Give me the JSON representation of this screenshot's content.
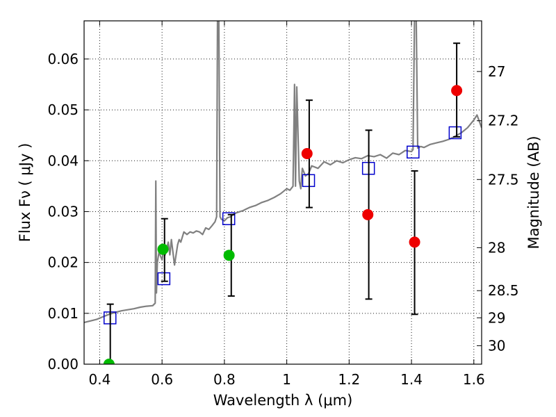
{
  "chart_data": {
    "type": "scatter",
    "title": "",
    "xlabel": "Wavelength  λ (μm)",
    "ylabel": "Flux  Fν  ( μJy )",
    "y2label": "Magnitude (AB)",
    "xlim": [
      0.35,
      1.625
    ],
    "ylim": [
      0.0,
      0.0675
    ],
    "grid": true,
    "x_ticks": [
      0.4,
      0.6,
      0.8,
      1.0,
      1.2,
      1.4,
      1.6
    ],
    "x_tick_labels": [
      "0.4",
      "0.6",
      "0.8",
      "1",
      "1.2",
      "1.4",
      "1.6"
    ],
    "y_ticks": [
      0.0,
      0.01,
      0.02,
      0.03,
      0.04,
      0.05,
      0.06
    ],
    "y_tick_labels": [
      "0.00",
      "0.01",
      "0.02",
      "0.03",
      "0.04",
      "0.05",
      "0.06"
    ],
    "mag_ticks": [
      27,
      27.2,
      27.5,
      28,
      28.5,
      29,
      30
    ],
    "mag_tick_labels": [
      "27",
      "27.2",
      "27.5",
      "28",
      "28.5",
      "29",
      "30"
    ],
    "colors": {
      "spectrum": "#808080",
      "green_points": "#00bb00",
      "red_points": "#ee0000",
      "model_boxes": "#0000cc",
      "errorbars": "#000000"
    },
    "spectrum": {
      "x": [
        0.35,
        0.37,
        0.39,
        0.41,
        0.43,
        0.45,
        0.47,
        0.49,
        0.51,
        0.53,
        0.55,
        0.57,
        0.578,
        0.58,
        0.582,
        0.585,
        0.59,
        0.6,
        0.605,
        0.61,
        0.62,
        0.625,
        0.63,
        0.64,
        0.65,
        0.655,
        0.66,
        0.67,
        0.68,
        0.69,
        0.7,
        0.71,
        0.72,
        0.73,
        0.74,
        0.75,
        0.76,
        0.77,
        0.775,
        0.778,
        0.782,
        0.786,
        0.79,
        0.8,
        0.81,
        0.82,
        0.83,
        0.84,
        0.85,
        0.86,
        0.87,
        0.88,
        0.89,
        0.9,
        0.92,
        0.94,
        0.96,
        0.98,
        0.99,
        1.0,
        1.01,
        1.02,
        1.025,
        1.028,
        1.032,
        1.04,
        1.045,
        1.05,
        1.06,
        1.07,
        1.08,
        1.1,
        1.12,
        1.14,
        1.16,
        1.18,
        1.2,
        1.22,
        1.24,
        1.26,
        1.28,
        1.3,
        1.32,
        1.34,
        1.36,
        1.38,
        1.4,
        1.405,
        1.41,
        1.415,
        1.42,
        1.43,
        1.44,
        1.46,
        1.48,
        1.5,
        1.52,
        1.54,
        1.56,
        1.58,
        1.6,
        1.61,
        1.625
      ],
      "y": [
        0.0082,
        0.0085,
        0.0088,
        0.0093,
        0.0098,
        0.0102,
        0.0105,
        0.0107,
        0.0109,
        0.0112,
        0.0114,
        0.0115,
        0.012,
        0.036,
        0.014,
        0.02,
        0.022,
        0.0205,
        0.0225,
        0.0215,
        0.024,
        0.0215,
        0.0245,
        0.0195,
        0.0235,
        0.0245,
        0.024,
        0.026,
        0.0255,
        0.026,
        0.0258,
        0.0262,
        0.026,
        0.0255,
        0.0268,
        0.0265,
        0.0272,
        0.028,
        0.029,
        0.069,
        0.069,
        0.029,
        0.0285,
        0.0282,
        0.0288,
        0.029,
        0.0295,
        0.0298,
        0.03,
        0.0302,
        0.0305,
        0.0308,
        0.031,
        0.0312,
        0.0318,
        0.0322,
        0.0328,
        0.0335,
        0.034,
        0.0345,
        0.0342,
        0.035,
        0.055,
        0.035,
        0.0545,
        0.036,
        0.0345,
        0.0385,
        0.037,
        0.0375,
        0.039,
        0.0385,
        0.0398,
        0.0392,
        0.04,
        0.0396,
        0.0402,
        0.0406,
        0.0404,
        0.041,
        0.0408,
        0.0412,
        0.0405,
        0.0415,
        0.0412,
        0.042,
        0.0418,
        0.0422,
        0.069,
        0.069,
        0.0425,
        0.0428,
        0.0426,
        0.0432,
        0.0435,
        0.0438,
        0.0442,
        0.0448,
        0.0455,
        0.0465,
        0.048,
        0.049,
        0.0465
      ]
    },
    "series": [
      {
        "marker": "circle",
        "color": "green",
        "points": [
          {
            "x": 0.43,
            "y": 0.0
          },
          {
            "x": 0.603,
            "y": 0.0226
          },
          {
            "x": 0.815,
            "y": 0.0214
          }
        ]
      },
      {
        "marker": "circle",
        "color": "red",
        "points": [
          {
            "x": 1.065,
            "y": 0.0414
          },
          {
            "x": 1.26,
            "y": 0.0294
          },
          {
            "x": 1.41,
            "y": 0.024
          },
          {
            "x": 1.545,
            "y": 0.0538
          }
        ]
      },
      {
        "marker": "open-square",
        "color": "blue",
        "points": [
          {
            "x": 0.433,
            "y": 0.0091
          },
          {
            "x": 0.606,
            "y": 0.0168
          },
          {
            "x": 0.814,
            "y": 0.0286
          },
          {
            "x": 1.07,
            "y": 0.0361
          },
          {
            "x": 1.262,
            "y": 0.0385
          },
          {
            "x": 1.405,
            "y": 0.0417
          },
          {
            "x": 1.54,
            "y": 0.0455
          }
        ]
      }
    ],
    "errorbars": [
      {
        "x": 0.434,
        "y_low": 0.0,
        "y_high": 0.0118
      },
      {
        "x": 0.608,
        "y_low": 0.0163,
        "y_high": 0.0286
      },
      {
        "x": 0.822,
        "y_low": 0.0134,
        "y_high": 0.0294
      },
      {
        "x": 1.072,
        "y_low": 0.0308,
        "y_high": 0.0519
      },
      {
        "x": 1.263,
        "y_low": 0.0128,
        "y_high": 0.046
      },
      {
        "x": 1.41,
        "y_low": 0.0098,
        "y_high": 0.038
      },
      {
        "x": 1.545,
        "y_low": 0.0447,
        "y_high": 0.0631
      }
    ]
  }
}
